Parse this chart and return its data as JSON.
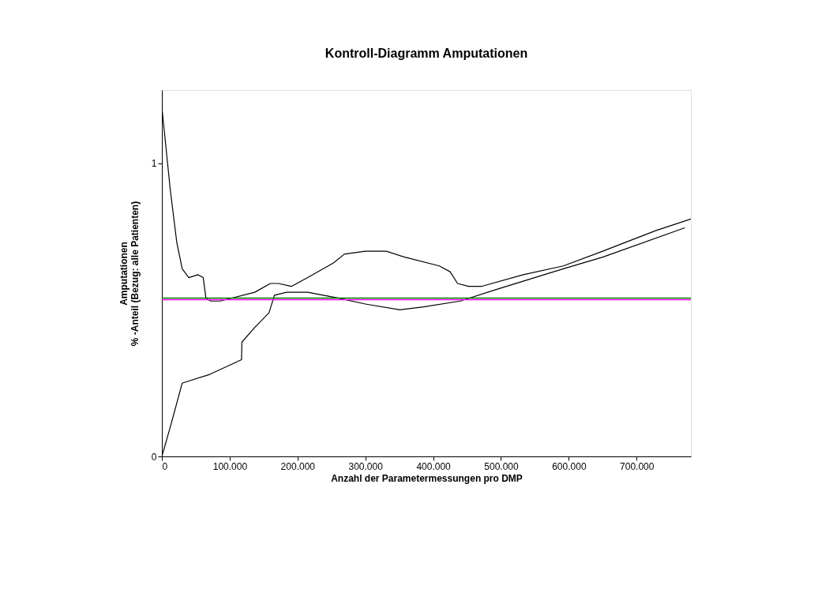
{
  "chart_data": {
    "type": "line",
    "title": "Kontroll-Diagramm Amputationen",
    "xlabel": "Anzahl der Parametermessungen pro DMP",
    "ylabel": "Amputationen\n% -Anteil (Bezug: alle Patienten)",
    "xlim": [
      0,
      780000
    ],
    "ylim": [
      0,
      1.25
    ],
    "xticks": [
      {
        "value": 0,
        "label": "0"
      },
      {
        "value": 100000,
        "label": "100.000"
      },
      {
        "value": 200000,
        "label": "200.000"
      },
      {
        "value": 300000,
        "label": "300.000"
      },
      {
        "value": 400000,
        "label": "400.000"
      },
      {
        "value": 500000,
        "label": "500.000"
      },
      {
        "value": 600000,
        "label": "600.000"
      },
      {
        "value": 700000,
        "label": "700.000"
      }
    ],
    "yticks": [
      0,
      1
    ],
    "grid": false,
    "marker": "none",
    "line_style": "solid",
    "series": [
      {
        "color": "#000000",
        "x": [
          0,
          500,
          12400,
          22000,
          30000,
          39700,
          53000,
          61000,
          65000,
          72000,
          86000,
          137000,
          160000,
          172000,
          191000,
          215000,
          253000,
          269000,
          300000,
          331000,
          358000,
          409000,
          425000,
          436000,
          452000,
          471000,
          533000,
          592000,
          650000,
          728000,
          780000
        ],
        "values": [
          1.24,
          1.18,
          0.91,
          0.73,
          0.64,
          0.61,
          0.62,
          0.61,
          0.54,
          0.53,
          0.53,
          0.56,
          0.59,
          0.59,
          0.58,
          0.61,
          0.66,
          0.69,
          0.7,
          0.7,
          0.68,
          0.65,
          0.63,
          0.59,
          0.58,
          0.58,
          0.62,
          0.65,
          0.7,
          0.77,
          0.81
        ]
      },
      {
        "color": "#000000",
        "x": [
          0,
          12400,
          30000,
          70800,
          117500,
          118000,
          137000,
          158000,
          166000,
          184000,
          215000,
          261000,
          300000,
          351000,
          386000,
          440000,
          494000,
          592000,
          650000,
          771000
        ],
        "values": [
          0.0,
          0.1,
          0.25,
          0.28,
          0.33,
          0.39,
          0.44,
          0.49,
          0.55,
          0.56,
          0.56,
          0.54,
          0.52,
          0.5,
          0.51,
          0.53,
          0.57,
          0.64,
          0.68,
          0.78
        ]
      }
    ],
    "ref_lines": [
      {
        "axis": "y",
        "value": 0.535,
        "color": "#ff00ff"
      },
      {
        "axis": "y",
        "value": 0.54,
        "color": "#008000"
      }
    ]
  }
}
